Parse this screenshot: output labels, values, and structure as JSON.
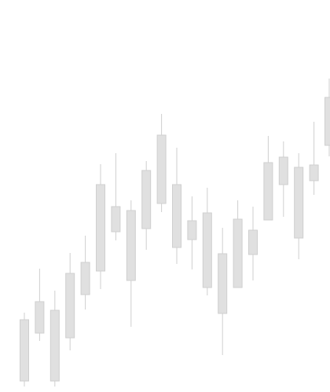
{
  "chart_data": {
    "type": "candlestick",
    "open": [
      14,
      75,
      14,
      69,
      124,
      154,
      204,
      142,
      208,
      240,
      184,
      194,
      133,
      100,
      133,
      175,
      219,
      264,
      196,
      269,
      314
    ],
    "high": [
      101,
      157,
      129,
      177,
      199,
      290,
      304,
      244,
      294,
      354,
      311,
      249,
      260,
      209,
      244,
      236,
      326,
      319,
      304,
      344,
      399
    ],
    "low": [
      7,
      65,
      7,
      53,
      105,
      131,
      193,
      83,
      181,
      229,
      163,
      156,
      123,
      47,
      133,
      142,
      219,
      223,
      169,
      251,
      300
    ],
    "close": [
      92,
      115,
      104,
      151,
      165,
      264,
      236,
      231,
      282,
      327,
      264,
      218,
      228,
      176,
      220,
      206,
      292,
      299,
      286,
      289,
      375
    ],
    "color": "#e0e0e0",
    "edge_color": "#cfcfcf",
    "ylim": [
      0,
      499
    ]
  }
}
